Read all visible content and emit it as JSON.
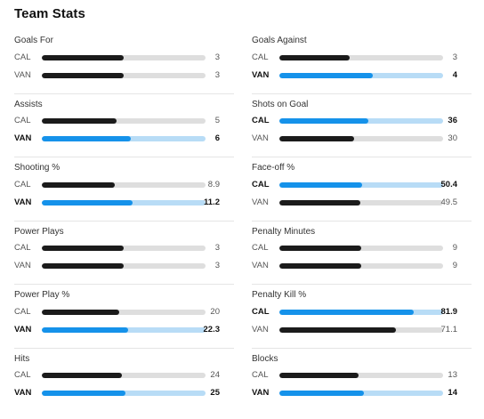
{
  "title": "Team Stats",
  "columns": [
    {
      "stats": [
        {
          "label": "Goals For",
          "rows": [
            {
              "team": "CAL",
              "value": "3",
              "fraction": 0.5,
              "winner": false,
              "bold": false
            },
            {
              "team": "VAN",
              "value": "3",
              "fraction": 0.5,
              "winner": false,
              "bold": false
            }
          ]
        },
        {
          "label": "Assists",
          "rows": [
            {
              "team": "CAL",
              "value": "5",
              "fraction": 0.455,
              "winner": false,
              "bold": false
            },
            {
              "team": "VAN",
              "value": "6",
              "fraction": 0.545,
              "winner": true,
              "bold": true
            }
          ]
        },
        {
          "label": "Shooting %",
          "rows": [
            {
              "team": "CAL",
              "value": "8.9",
              "fraction": 0.443,
              "winner": false,
              "bold": false
            },
            {
              "team": "VAN",
              "value": "11.2",
              "fraction": 0.557,
              "winner": true,
              "bold": true
            }
          ]
        },
        {
          "label": "Power Plays",
          "rows": [
            {
              "team": "CAL",
              "value": "3",
              "fraction": 0.5,
              "winner": false,
              "bold": false
            },
            {
              "team": "VAN",
              "value": "3",
              "fraction": 0.5,
              "winner": false,
              "bold": false
            }
          ]
        },
        {
          "label": "Power Play %",
          "rows": [
            {
              "team": "CAL",
              "value": "20",
              "fraction": 0.473,
              "winner": false,
              "bold": false
            },
            {
              "team": "VAN",
              "value": "22.3",
              "fraction": 0.527,
              "winner": true,
              "bold": true
            }
          ]
        },
        {
          "label": "Hits",
          "rows": [
            {
              "team": "CAL",
              "value": "24",
              "fraction": 0.49,
              "winner": false,
              "bold": false
            },
            {
              "team": "VAN",
              "value": "25",
              "fraction": 0.51,
              "winner": true,
              "bold": true
            }
          ]
        }
      ]
    },
    {
      "stats": [
        {
          "label": "Goals Against",
          "rows": [
            {
              "team": "CAL",
              "value": "3",
              "fraction": 0.429,
              "winner": false,
              "bold": false
            },
            {
              "team": "VAN",
              "value": "4",
              "fraction": 0.571,
              "winner": true,
              "bold": true
            }
          ]
        },
        {
          "label": "Shots on Goal",
          "rows": [
            {
              "team": "CAL",
              "value": "36",
              "fraction": 0.545,
              "winner": true,
              "bold": true
            },
            {
              "team": "VAN",
              "value": "30",
              "fraction": 0.455,
              "winner": false,
              "bold": false
            }
          ]
        },
        {
          "label": "Face-off %",
          "rows": [
            {
              "team": "CAL",
              "value": "50.4",
              "fraction": 0.504,
              "winner": true,
              "bold": true
            },
            {
              "team": "VAN",
              "value": "49.5",
              "fraction": 0.495,
              "winner": false,
              "bold": false
            }
          ]
        },
        {
          "label": "Penalty Minutes",
          "rows": [
            {
              "team": "CAL",
              "value": "9",
              "fraction": 0.5,
              "winner": false,
              "bold": false
            },
            {
              "team": "VAN",
              "value": "9",
              "fraction": 0.5,
              "winner": false,
              "bold": false
            }
          ]
        },
        {
          "label": "Penalty Kill %",
          "rows": [
            {
              "team": "CAL",
              "value": "81.9",
              "fraction": 0.819,
              "winner": true,
              "bold": true
            },
            {
              "team": "VAN",
              "value": "71.1",
              "fraction": 0.711,
              "winner": false,
              "bold": false
            }
          ]
        },
        {
          "label": "Blocks",
          "rows": [
            {
              "team": "CAL",
              "value": "13",
              "fraction": 0.481,
              "winner": false,
              "bold": false
            },
            {
              "team": "VAN",
              "value": "14",
              "fraction": 0.519,
              "winner": true,
              "bold": true
            }
          ]
        }
      ]
    }
  ],
  "colors": {
    "accent": "#1592ea",
    "accent_track": "#b8dcf6",
    "neutral_bar": "#1b1b1b",
    "neutral_track": "#dedede"
  }
}
